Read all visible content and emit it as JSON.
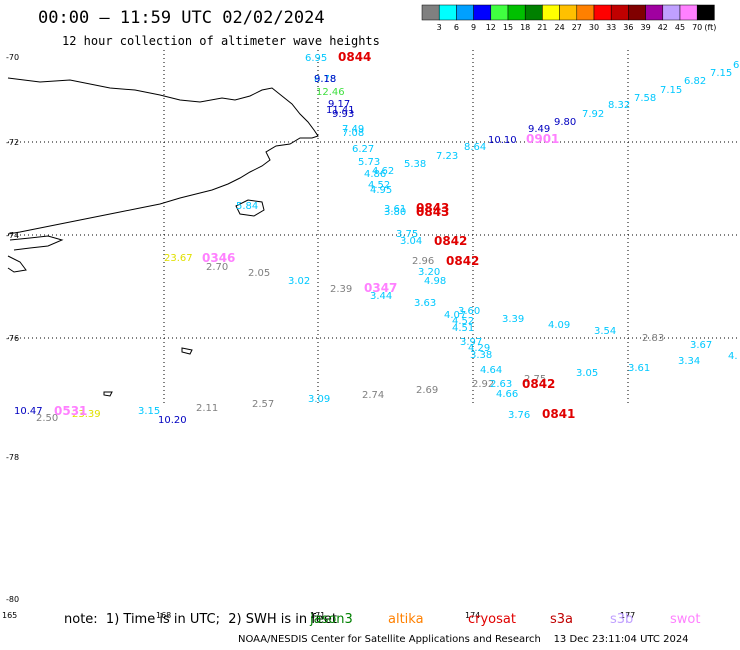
{
  "title": "00:00 – 11:59 UTC 02/02/2024",
  "subtitle": "12 hour collection of altimeter wave heights",
  "legend": {
    "ticks": [
      "3",
      "6",
      "9",
      "12",
      "15",
      "18",
      "21",
      "24",
      "27",
      "30",
      "33",
      "36",
      "39",
      "42",
      "45",
      "70"
    ],
    "unit": "(ft)",
    "colors": [
      "#808080",
      "#00ffff",
      "#00a0ff",
      "#0000ff",
      "#40ff40",
      "#00c000",
      "#008000",
      "#ffff00",
      "#ffc000",
      "#ff8000",
      "#ff0000",
      "#c00000",
      "#800000",
      "#a000a0",
      "#c0a0ff",
      "#ff80ff",
      "#000000"
    ]
  },
  "lat_labels": [
    "-70",
    "-72",
    "-74",
    "-76",
    "-78",
    "-80"
  ],
  "lon_labels": [
    "165",
    "168",
    "171",
    "174",
    "177"
  ],
  "points": [
    {
      "v": "6.95",
      "c": "#00c8ff"
    },
    {
      "v": "8.78",
      "c": "#00c8ff"
    },
    {
      "v": "9.18",
      "c": "#0000c0"
    },
    {
      "v": "12.46",
      "c": "#40e040"
    },
    {
      "v": "9.17",
      "c": "#0000c0"
    },
    {
      "v": "11.41",
      "c": "#0000c0"
    },
    {
      "v": "9.93",
      "c": "#0000c0"
    },
    {
      "v": "7.49",
      "c": "#00c8ff"
    },
    {
      "v": "7.08",
      "c": "#00c8ff"
    },
    {
      "v": "6.27",
      "c": "#00c8ff"
    },
    {
      "v": "5.73",
      "c": "#00c8ff"
    },
    {
      "v": "4.62",
      "c": "#00c8ff"
    },
    {
      "v": "4.86",
      "c": "#00c8ff"
    },
    {
      "v": "4.52",
      "c": "#00c8ff"
    },
    {
      "v": "4.95",
      "c": "#00c8ff"
    },
    {
      "v": "5.38",
      "c": "#00c8ff"
    },
    {
      "v": "7.23",
      "c": "#00c8ff"
    },
    {
      "v": "8.64",
      "c": "#00c8ff"
    },
    {
      "v": "10.10",
      "c": "#0000c0"
    },
    {
      "v": "9.49",
      "c": "#0000c0"
    },
    {
      "v": "9.80",
      "c": "#0000c0"
    },
    {
      "v": "7.92",
      "c": "#00c8ff"
    },
    {
      "v": "8.32",
      "c": "#00c8ff"
    },
    {
      "v": "7.58",
      "c": "#00c8ff"
    },
    {
      "v": "7.15",
      "c": "#00c8ff"
    },
    {
      "v": "6.82",
      "c": "#00c8ff"
    },
    {
      "v": "7.15",
      "c": "#00c8ff"
    },
    {
      "v": "6",
      "c": "#00c8ff"
    },
    {
      "v": "5.84",
      "c": "#00c8ff"
    },
    {
      "v": "3.61",
      "c": "#00c8ff"
    },
    {
      "v": "3.80",
      "c": "#00c8ff"
    },
    {
      "v": "3.75",
      "c": "#00c8ff"
    },
    {
      "v": "3.04",
      "c": "#00c8ff"
    },
    {
      "v": "2.96",
      "c": "#808080"
    },
    {
      "v": "3.20",
      "c": "#00c8ff"
    },
    {
      "v": "4.98",
      "c": "#00c8ff"
    },
    {
      "v": "23.67",
      "c": "#e0e000"
    },
    {
      "v": "2.70",
      "c": "#808080"
    },
    {
      "v": "2.05",
      "c": "#808080"
    },
    {
      "v": "3.02",
      "c": "#00c8ff"
    },
    {
      "v": "2.39",
      "c": "#808080"
    },
    {
      "v": "3.44",
      "c": "#00c8ff"
    },
    {
      "v": "3.63",
      "c": "#00c8ff"
    },
    {
      "v": "3.60",
      "c": "#00c8ff"
    },
    {
      "v": "4.07",
      "c": "#00c8ff"
    },
    {
      "v": "4.52",
      "c": "#00c8ff"
    },
    {
      "v": "4.51",
      "c": "#00c8ff"
    },
    {
      "v": "3.39",
      "c": "#00c8ff"
    },
    {
      "v": "4.09",
      "c": "#00c8ff"
    },
    {
      "v": "3.54",
      "c": "#00c8ff"
    },
    {
      "v": "2.83",
      "c": "#808080"
    },
    {
      "v": "3.67",
      "c": "#00c8ff"
    },
    {
      "v": "4.",
      "c": "#00c8ff"
    },
    {
      "v": "3.34",
      "c": "#00c8ff"
    },
    {
      "v": "3.97",
      "c": "#00c8ff"
    },
    {
      "v": "4.29",
      "c": "#00c8ff"
    },
    {
      "v": "3.38",
      "c": "#00c8ff"
    },
    {
      "v": "4.64",
      "c": "#00c8ff"
    },
    {
      "v": "2.75",
      "c": "#808080"
    },
    {
      "v": "2.92",
      "c": "#808080"
    },
    {
      "v": "2.63",
      "c": "#00c8ff"
    },
    {
      "v": "4.66",
      "c": "#00c8ff"
    },
    {
      "v": "3.05",
      "c": "#00c8ff"
    },
    {
      "v": "3.61",
      "c": "#00c8ff"
    },
    {
      "v": "3.76",
      "c": "#00c8ff"
    },
    {
      "v": "2.69",
      "c": "#808080"
    },
    {
      "v": "2.74",
      "c": "#808080"
    },
    {
      "v": "3.09",
      "c": "#00c8ff"
    },
    {
      "v": "2.57",
      "c": "#808080"
    },
    {
      "v": "2.11",
      "c": "#808080"
    },
    {
      "v": "3.15",
      "c": "#00c8ff"
    },
    {
      "v": "10.20",
      "c": "#0000c0"
    },
    {
      "v": "10.47",
      "c": "#0000c0"
    },
    {
      "v": "2.50",
      "c": "#808080"
    },
    {
      "v": "23.39",
      "c": "#e0e000"
    }
  ],
  "passes": [
    {
      "t": "0844",
      "c": "#e00000"
    },
    {
      "t": "0901",
      "c": "#ff80ff"
    },
    {
      "t": "0843",
      "c": "#e00000"
    },
    {
      "t": "0843",
      "c": "#e00000"
    },
    {
      "t": "0842",
      "c": "#e00000"
    },
    {
      "t": "0842",
      "c": "#e00000"
    },
    {
      "t": "0346",
      "c": "#ff80ff"
    },
    {
      "t": "0347",
      "c": "#ff80ff"
    },
    {
      "t": "0842",
      "c": "#e00000"
    },
    {
      "t": "0841",
      "c": "#e00000"
    },
    {
      "t": "0531",
      "c": "#ff80ff"
    }
  ],
  "note": "note:  1) Time is in UTC;  2) SWH is in feet",
  "missions": [
    {
      "name": "jason3",
      "c": "#008000"
    },
    {
      "name": "altika",
      "c": "#ff8000"
    },
    {
      "name": "cryosat",
      "c": "#e00000"
    },
    {
      "name": "s3a",
      "c": "#c00000"
    },
    {
      "name": "s3b",
      "c": "#c0a0ff"
    },
    {
      "name": "swot",
      "c": "#ff80ff"
    }
  ],
  "credit": "NOAA/NESDIS Center for Satellite Applications and Research    13 Dec 23:11:04 UTC 2024"
}
